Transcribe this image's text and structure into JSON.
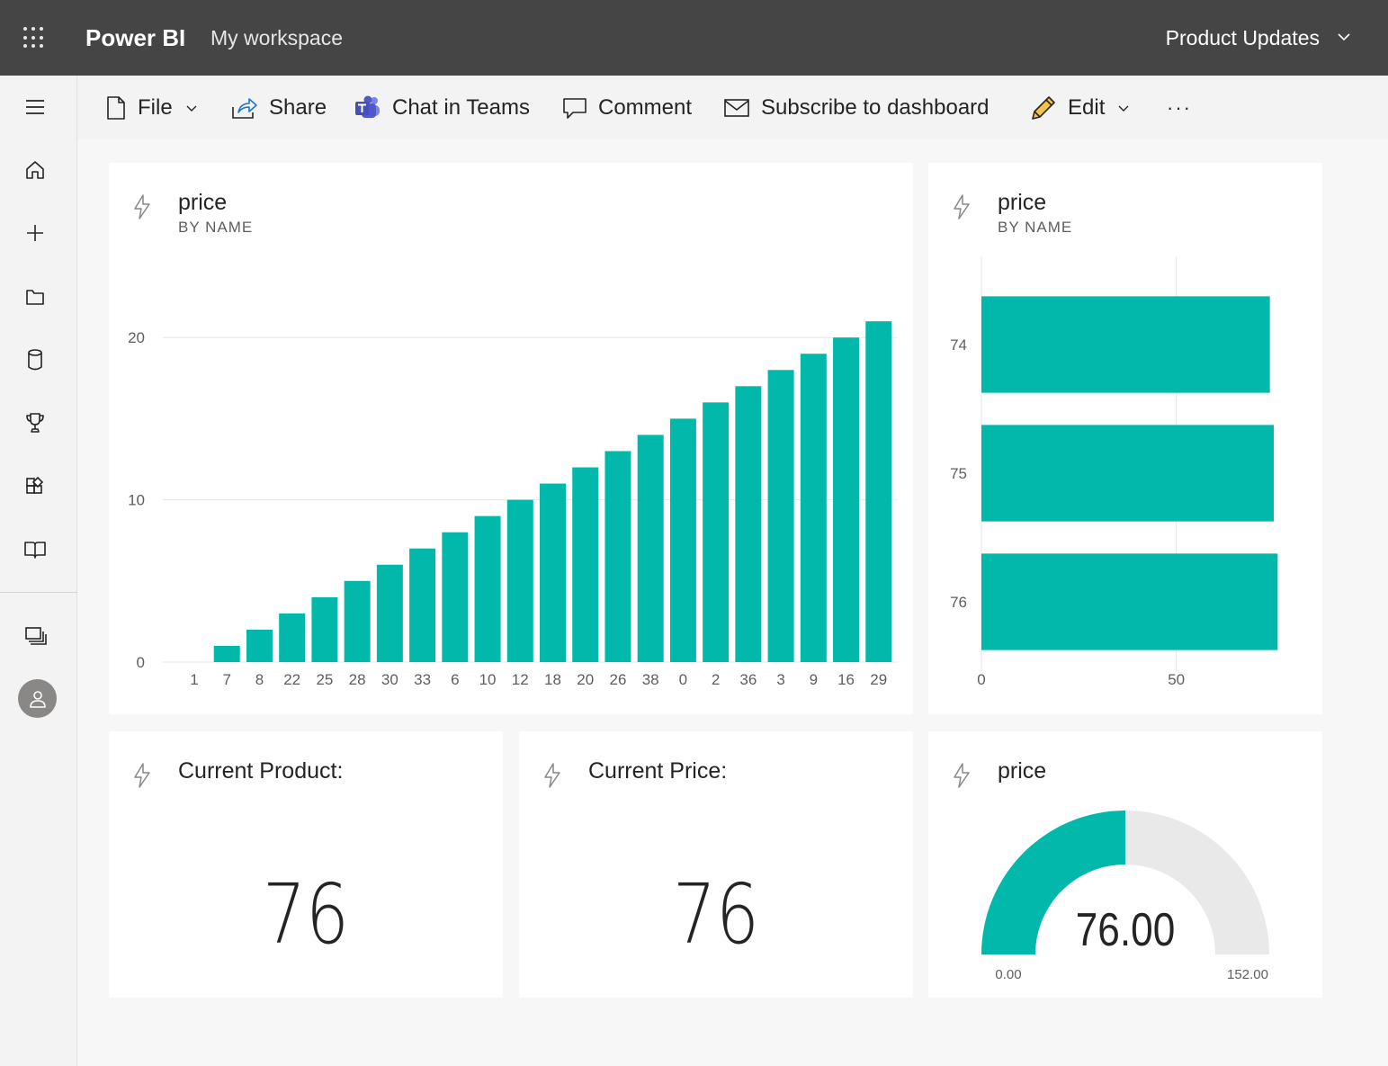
{
  "topbar": {
    "app_name": "Power BI",
    "workspace": "My workspace",
    "dashboard_name": "Product Updates"
  },
  "sidebar": {
    "items": [
      {
        "icon": "hamburger-icon"
      },
      {
        "icon": "home-icon"
      },
      {
        "icon": "plus-icon"
      },
      {
        "icon": "folder-icon"
      },
      {
        "icon": "database-icon"
      },
      {
        "icon": "trophy-icon"
      },
      {
        "icon": "apps-icon"
      },
      {
        "icon": "book-icon"
      },
      {
        "icon": "workspaces-icon"
      },
      {
        "icon": "avatar-icon"
      }
    ]
  },
  "toolbar": {
    "file_label": "File",
    "share_label": "Share",
    "teams_label": "Chat in Teams",
    "comment_label": "Comment",
    "subscribe_label": "Subscribe to dashboard",
    "edit_label": "Edit",
    "more_label": "···"
  },
  "colors": {
    "accent": "#01B8AA",
    "topbar": "#454545",
    "gauge_track": "#E9E9E9"
  },
  "tiles": {
    "column_chart": {
      "title": "price",
      "subtitle": "BY NAME"
    },
    "bar_chart": {
      "title": "price",
      "subtitle": "BY NAME"
    },
    "card_product": {
      "title": "Current Product:",
      "value": "76"
    },
    "card_price": {
      "title": "Current Price:",
      "value": "76"
    },
    "gauge": {
      "title": "price",
      "value_label": "76.00",
      "min_label": "0.00",
      "max_label": "152.00"
    }
  },
  "chart_data": [
    {
      "type": "bar",
      "title": "price",
      "subtitle": "BY NAME",
      "categories": [
        "1",
        "7",
        "8",
        "22",
        "25",
        "28",
        "30",
        "33",
        "6",
        "10",
        "12",
        "18",
        "20",
        "26",
        "38",
        "0",
        "2",
        "36",
        "3",
        "9",
        "16",
        "29"
      ],
      "values": [
        0,
        1,
        2,
        3,
        4,
        5,
        6,
        7,
        8,
        9,
        10,
        11,
        12,
        13,
        14,
        15,
        16,
        17,
        18,
        19,
        20,
        21
      ],
      "yticks": [
        "0",
        "10",
        "20"
      ],
      "ylim": [
        0,
        25
      ],
      "grid": true
    },
    {
      "type": "bar",
      "orientation": "horizontal",
      "title": "price",
      "subtitle": "BY NAME",
      "categories": [
        "74",
        "75",
        "76"
      ],
      "values": [
        74,
        75,
        76
      ],
      "xticks": [
        "0",
        "50"
      ],
      "xlim": [
        0,
        78
      ],
      "grid": true
    },
    {
      "type": "gauge",
      "title": "price",
      "value": 76,
      "min": 0,
      "max": 152,
      "value_label": "76.00",
      "min_label": "0.00",
      "max_label": "152.00"
    }
  ]
}
